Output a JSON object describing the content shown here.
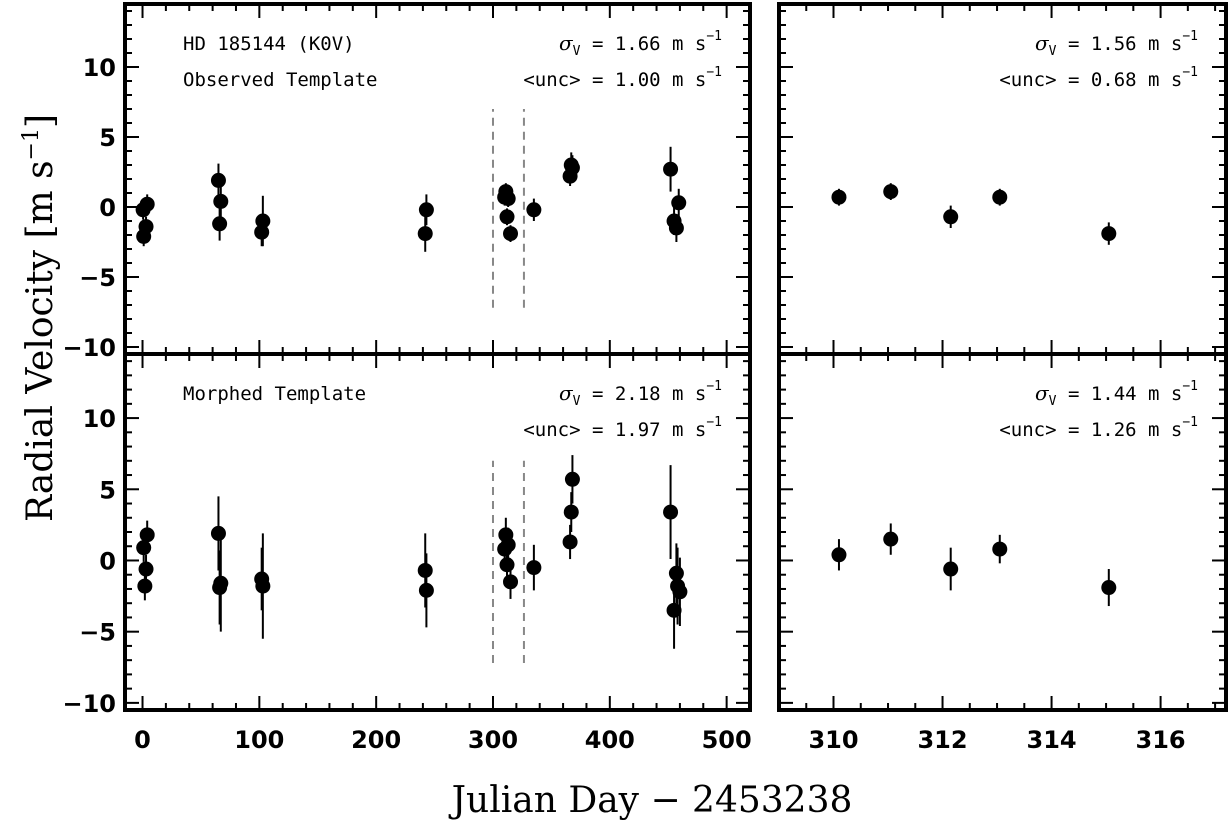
{
  "figure": {
    "xlabel": "Julian Day − 2453238",
    "ylabel_main": "Radial Velocity [m s",
    "ylabel_exp": "−1",
    "ylabel_close": "]"
  },
  "chart_data": [
    {
      "type": "scatter",
      "panel": "top-left",
      "annotations": {
        "line1": "HD 185144 (K0V)",
        "line2": "Observed Template",
        "sigma_sym": "σ",
        "sigma_sub": "V",
        "sigma_text": " = 1.66 m s",
        "unc_text": "<unc> = 1.00 m s",
        "unit_exp": "−1"
      },
      "xlim": [
        -15,
        520
      ],
      "ylim": [
        -10.5,
        14.5
      ],
      "xticks": [
        0,
        100,
        200,
        300,
        400,
        500
      ],
      "yticks": [
        -10,
        -5,
        0,
        5,
        10
      ],
      "show_xtick_labels": false,
      "show_ytick_labels": true,
      "dashed_lines_x": [
        300,
        326.5
      ],
      "dashed_range_y": [
        -7.2,
        7.0
      ],
      "points": [
        {
          "x": 0.5,
          "y": -0.2,
          "err": 0.7
        },
        {
          "x": 1.0,
          "y": -2.1,
          "err": 0.7
        },
        {
          "x": 3.0,
          "y": -1.4,
          "err": 0.7
        },
        {
          "x": 4.0,
          "y": 0.2,
          "err": 0.7
        },
        {
          "x": 65.0,
          "y": 1.9,
          "err": 1.2
        },
        {
          "x": 66.0,
          "y": -1.2,
          "err": 1.2
        },
        {
          "x": 67.0,
          "y": 0.4,
          "err": 1.2
        },
        {
          "x": 102.0,
          "y": -1.8,
          "err": 1.0
        },
        {
          "x": 103.0,
          "y": -1.0,
          "err": 1.8
        },
        {
          "x": 242.0,
          "y": -1.9,
          "err": 1.3
        },
        {
          "x": 243.0,
          "y": -0.2,
          "err": 1.1
        },
        {
          "x": 310.0,
          "y": 0.7,
          "err": 0.6
        },
        {
          "x": 311.0,
          "y": 1.1,
          "err": 0.6
        },
        {
          "x": 312.0,
          "y": -0.7,
          "err": 0.6
        },
        {
          "x": 313.0,
          "y": 0.6,
          "err": 0.6
        },
        {
          "x": 315.0,
          "y": -1.9,
          "err": 0.6
        },
        {
          "x": 335.0,
          "y": -0.2,
          "err": 0.8
        },
        {
          "x": 366.0,
          "y": 2.2,
          "err": 0.7
        },
        {
          "x": 367.0,
          "y": 3.0,
          "err": 0.9
        },
        {
          "x": 368.0,
          "y": 2.8,
          "err": 0.9
        },
        {
          "x": 452.0,
          "y": 2.7,
          "err": 1.6
        },
        {
          "x": 455.0,
          "y": -1.0,
          "err": 1.0
        },
        {
          "x": 457.0,
          "y": -1.5,
          "err": 1.0
        },
        {
          "x": 459.0,
          "y": 0.3,
          "err": 1.0
        }
      ]
    },
    {
      "type": "scatter",
      "panel": "top-right",
      "annotations": {
        "sigma_sym": "σ",
        "sigma_sub": "V",
        "sigma_text": " = 1.56 m s",
        "unc_text": "<unc> = 0.68 m s",
        "unit_exp": "−1"
      },
      "xlim": [
        309.0,
        317.2
      ],
      "ylim": [
        -10.5,
        14.5
      ],
      "xticks": [
        310,
        312,
        314,
        316
      ],
      "yticks": [
        -10,
        -5,
        0,
        5,
        10
      ],
      "show_xtick_labels": false,
      "show_ytick_labels": false,
      "points": [
        {
          "x": 310.1,
          "y": 0.7,
          "err": 0.6
        },
        {
          "x": 311.05,
          "y": 1.1,
          "err": 0.6
        },
        {
          "x": 312.15,
          "y": -0.7,
          "err": 0.8
        },
        {
          "x": 313.05,
          "y": 0.7,
          "err": 0.6
        },
        {
          "x": 315.05,
          "y": -1.9,
          "err": 0.8
        }
      ]
    },
    {
      "type": "scatter",
      "panel": "bottom-left",
      "annotations": {
        "line1": "Morphed Template",
        "sigma_sym": "σ",
        "sigma_sub": "V",
        "sigma_text": " = 2.18 m s",
        "unc_text": "<unc> = 1.97 m s",
        "unit_exp": "−1"
      },
      "xlim": [
        -15,
        520
      ],
      "ylim": [
        -10.5,
        14.5
      ],
      "xticks": [
        0,
        100,
        200,
        300,
        400,
        500
      ],
      "yticks": [
        -10,
        -5,
        0,
        5,
        10
      ],
      "show_xtick_labels": true,
      "show_ytick_labels": true,
      "dashed_lines_x": [
        300,
        326.5
      ],
      "dashed_range_y": [
        -7.2,
        7.0
      ],
      "points": [
        {
          "x": 1.0,
          "y": 0.9,
          "err": 1.0
        },
        {
          "x": 2.0,
          "y": -1.8,
          "err": 1.0
        },
        {
          "x": 3.0,
          "y": -0.6,
          "err": 1.0
        },
        {
          "x": 4.0,
          "y": 1.8,
          "err": 1.0
        },
        {
          "x": 65.0,
          "y": 1.9,
          "err": 2.6
        },
        {
          "x": 66.0,
          "y": -1.9,
          "err": 2.6
        },
        {
          "x": 67.0,
          "y": -1.6,
          "err": 3.4
        },
        {
          "x": 102.0,
          "y": -1.3,
          "err": 2.2
        },
        {
          "x": 103.0,
          "y": -1.8,
          "err": 3.7
        },
        {
          "x": 242.0,
          "y": -0.7,
          "err": 2.6
        },
        {
          "x": 243.0,
          "y": -2.1,
          "err": 2.6
        },
        {
          "x": 310.0,
          "y": 0.8,
          "err": 1.2
        },
        {
          "x": 311.0,
          "y": 1.8,
          "err": 1.2
        },
        {
          "x": 312.0,
          "y": -0.3,
          "err": 1.2
        },
        {
          "x": 313.0,
          "y": 1.1,
          "err": 1.2
        },
        {
          "x": 315.0,
          "y": -1.5,
          "err": 1.2
        },
        {
          "x": 335.0,
          "y": -0.5,
          "err": 1.6
        },
        {
          "x": 366.0,
          "y": 1.3,
          "err": 1.2
        },
        {
          "x": 367.0,
          "y": 3.4,
          "err": 1.4
        },
        {
          "x": 368.0,
          "y": 5.7,
          "err": 1.7
        },
        {
          "x": 452.0,
          "y": 3.4,
          "err": 3.3
        },
        {
          "x": 455.0,
          "y": -3.5,
          "err": 2.7
        },
        {
          "x": 457.0,
          "y": -0.9,
          "err": 2.1
        },
        {
          "x": 458.0,
          "y": -1.8,
          "err": 2.7
        },
        {
          "x": 460.0,
          "y": -2.2,
          "err": 2.4
        }
      ]
    },
    {
      "type": "scatter",
      "panel": "bottom-right",
      "annotations": {
        "sigma_sym": "σ",
        "sigma_sub": "V",
        "sigma_text": " = 1.44 m s",
        "unc_text": "<unc> = 1.26 m s",
        "unit_exp": "−1"
      },
      "xlim": [
        309.0,
        317.2
      ],
      "ylim": [
        -10.5,
        14.5
      ],
      "xticks": [
        310,
        312,
        314,
        316
      ],
      "yticks": [
        -10,
        -5,
        0,
        5,
        10
      ],
      "show_xtick_labels": true,
      "show_ytick_labels": false,
      "points": [
        {
          "x": 310.1,
          "y": 0.4,
          "err": 1.1
        },
        {
          "x": 311.05,
          "y": 1.5,
          "err": 1.1
        },
        {
          "x": 312.15,
          "y": -0.6,
          "err": 1.5
        },
        {
          "x": 313.05,
          "y": 0.8,
          "err": 1.0
        },
        {
          "x": 315.05,
          "y": -1.9,
          "err": 1.3
        }
      ]
    }
  ]
}
